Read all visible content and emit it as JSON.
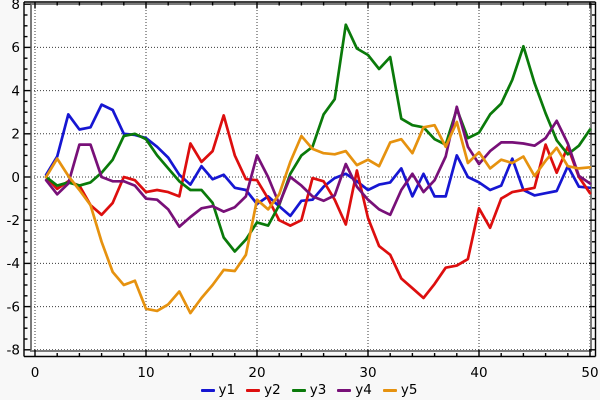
{
  "chart_data": {
    "type": "line",
    "title": "",
    "xlabel": "",
    "ylabel": "",
    "x_start": 1,
    "x_step": 1,
    "xlim": [
      0,
      50
    ],
    "ylim": [
      -8,
      8
    ],
    "x_ticks_major": [
      0,
      10,
      20,
      30,
      40,
      50
    ],
    "x_tick_minor_step": 2,
    "y_ticks_major": [
      8,
      6,
      4,
      2,
      0,
      -2,
      -4,
      -6,
      -8
    ],
    "y_tick_minor_step": 0.5,
    "grid": "dotted",
    "legend_position": "bottom",
    "plot_bg": "#ffffff",
    "figure_bg": "#f8f8f8",
    "frame_color": "#7a7a7a",
    "grid_color": "#3a3a3a",
    "axis_color": "#000000",
    "series": [
      {
        "name": "y1",
        "color": "#1616d2",
        "values": [
          0.1,
          0.95,
          2.9,
          2.2,
          2.3,
          3.35,
          3.1,
          2.0,
          1.95,
          1.8,
          1.4,
          0.9,
          0.1,
          -0.35,
          0.5,
          -0.1,
          0.1,
          -0.5,
          -0.6,
          -1.25,
          -0.9,
          -1.35,
          -1.8,
          -1.1,
          -1.05,
          -0.45,
          -0.05,
          0.15,
          -0.2,
          -0.6,
          -0.35,
          -0.25,
          0.4,
          -0.9,
          0.15,
          -0.9,
          -0.9,
          1.0,
          0.0,
          -0.25,
          -0.6,
          -0.4,
          0.85,
          -0.6,
          -0.85,
          -0.75,
          -0.65,
          0.5,
          -0.45,
          -0.5
        ]
      },
      {
        "name": "y2",
        "color": "#dd0e0e",
        "values": [
          0.0,
          -0.55,
          -0.2,
          -0.4,
          -1.3,
          -1.75,
          -1.2,
          0.0,
          -0.15,
          -0.7,
          -0.6,
          -0.7,
          -0.9,
          1.55,
          0.7,
          1.2,
          2.85,
          1.0,
          -0.1,
          -0.15,
          -1.0,
          -2.0,
          -2.25,
          -2.0,
          -0.05,
          -0.2,
          -1.05,
          -2.2,
          0.3,
          -1.9,
          -3.2,
          -3.6,
          -4.7,
          -5.15,
          -5.6,
          -4.95,
          -4.2,
          -4.1,
          -3.8,
          -1.45,
          -2.35,
          -1.0,
          -0.7,
          -0.6,
          -0.5,
          1.5,
          0.2,
          1.4,
          0.0,
          -0.75
        ]
      },
      {
        "name": "y3",
        "color": "#0a7a0a",
        "values": [
          0.0,
          -0.4,
          -0.25,
          -0.4,
          -0.25,
          0.2,
          0.8,
          1.9,
          2.0,
          1.75,
          1.0,
          0.4,
          -0.2,
          -0.6,
          -0.6,
          -1.2,
          -2.8,
          -3.45,
          -2.9,
          -2.1,
          -2.25,
          -1.3,
          0.15,
          1.0,
          1.4,
          2.9,
          3.6,
          7.05,
          5.95,
          5.65,
          5.0,
          5.55,
          2.7,
          2.4,
          2.3,
          1.75,
          1.5,
          3.15,
          1.8,
          2.05,
          2.9,
          3.4,
          4.5,
          6.05,
          4.35,
          2.95,
          1.7,
          1.05,
          1.45,
          2.2
        ]
      },
      {
        "name": "y4",
        "color": "#781078",
        "values": [
          -0.15,
          -0.8,
          -0.3,
          1.5,
          1.5,
          0.0,
          -0.2,
          -0.2,
          -0.4,
          -1.0,
          -1.05,
          -1.5,
          -2.3,
          -1.85,
          -1.45,
          -1.35,
          -1.6,
          -1.4,
          -0.9,
          1.0,
          0.0,
          -1.25,
          0.0,
          -0.4,
          -0.9,
          -1.1,
          -0.85,
          0.6,
          -0.45,
          -1.05,
          -1.5,
          -1.75,
          -0.6,
          0.15,
          -0.7,
          -0.15,
          0.95,
          3.25,
          1.4,
          0.6,
          1.2,
          1.6,
          1.6,
          1.55,
          1.45,
          1.8,
          2.6,
          1.55,
          0.05,
          -0.3
        ]
      },
      {
        "name": "y5",
        "color": "#e6920f",
        "values": [
          0.0,
          0.85,
          0.05,
          -0.6,
          -1.3,
          -3.0,
          -4.4,
          -5.0,
          -4.8,
          -6.1,
          -6.2,
          -5.9,
          -5.3,
          -6.3,
          -5.6,
          -5.0,
          -4.3,
          -4.35,
          -3.6,
          -1.05,
          -1.5,
          -0.8,
          0.7,
          1.9,
          1.3,
          1.1,
          1.05,
          1.2,
          0.55,
          0.8,
          0.5,
          1.6,
          1.75,
          1.1,
          2.3,
          2.4,
          1.4,
          2.55,
          0.65,
          1.15,
          0.4,
          0.8,
          0.65,
          0.95,
          0.05,
          0.75,
          1.35,
          0.5,
          0.4,
          0.45
        ]
      }
    ]
  },
  "legend": {
    "items": [
      {
        "label": "y1"
      },
      {
        "label": "y2"
      },
      {
        "label": "y3"
      },
      {
        "label": "y4"
      },
      {
        "label": "y5"
      }
    ]
  }
}
